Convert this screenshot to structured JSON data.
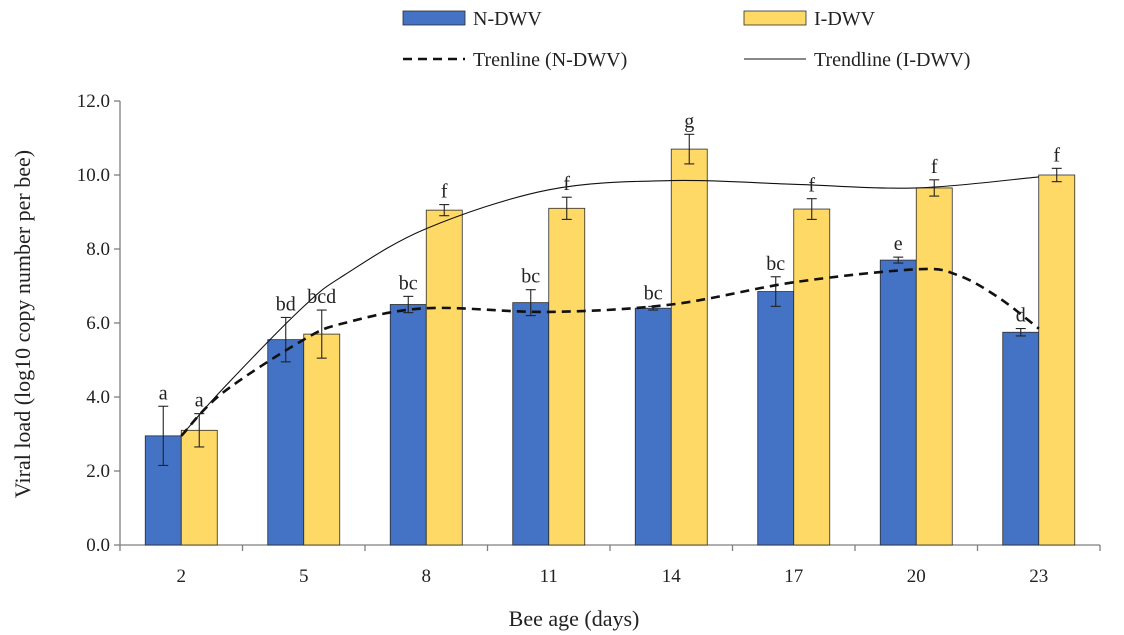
{
  "chart_data": {
    "type": "bar",
    "xlabel": "Bee age (days)",
    "ylabel": "Viral load (log10 copy number per bee)",
    "ylim": [
      0,
      12
    ],
    "yticks": [
      "0.0",
      "2.0",
      "4.0",
      "6.0",
      "8.0",
      "10.0",
      "12.0"
    ],
    "grid": false,
    "legend_position": "top",
    "categories": [
      "2",
      "5",
      "8",
      "11",
      "14",
      "17",
      "20",
      "23"
    ],
    "series": [
      {
        "name": "N-DWV",
        "color": "#4472C4",
        "values": [
          2.95,
          5.55,
          6.5,
          6.55,
          6.4,
          6.85,
          7.7,
          5.75
        ],
        "errors": [
          0.8,
          0.6,
          0.22,
          0.35,
          0.05,
          0.4,
          0.08,
          0.1
        ],
        "labels": [
          "a",
          "bd",
          "bc",
          "bc",
          "bc",
          "bc",
          "e",
          "d"
        ]
      },
      {
        "name": "I-DWV",
        "color": "#FFD966",
        "values": [
          3.1,
          5.7,
          9.05,
          9.1,
          10.7,
          9.08,
          9.65,
          10.0
        ],
        "errors": [
          0.45,
          0.65,
          0.15,
          0.3,
          0.4,
          0.28,
          0.22,
          0.18
        ],
        "labels": [
          "a",
          "bcd",
          "f",
          "f",
          "g",
          "f",
          "f",
          "f"
        ]
      }
    ],
    "trendlines": [
      {
        "name": "Trenline (N-DWV)",
        "style": "dashed",
        "x": [
          2,
          3,
          5,
          6,
          8,
          11,
          14,
          17,
          20,
          21,
          22,
          23
        ],
        "y": [
          2.95,
          4.1,
          5.55,
          6.0,
          6.4,
          6.3,
          6.5,
          7.1,
          7.45,
          7.3,
          6.7,
          5.85
        ]
      },
      {
        "name": "Trendline (I-DWV)",
        "style": "solid",
        "x": [
          2,
          3,
          5,
          6,
          8,
          11,
          14,
          17,
          20,
          23
        ],
        "y": [
          2.95,
          4.2,
          6.45,
          7.3,
          8.55,
          9.6,
          9.85,
          9.75,
          9.65,
          9.95
        ]
      }
    ]
  }
}
